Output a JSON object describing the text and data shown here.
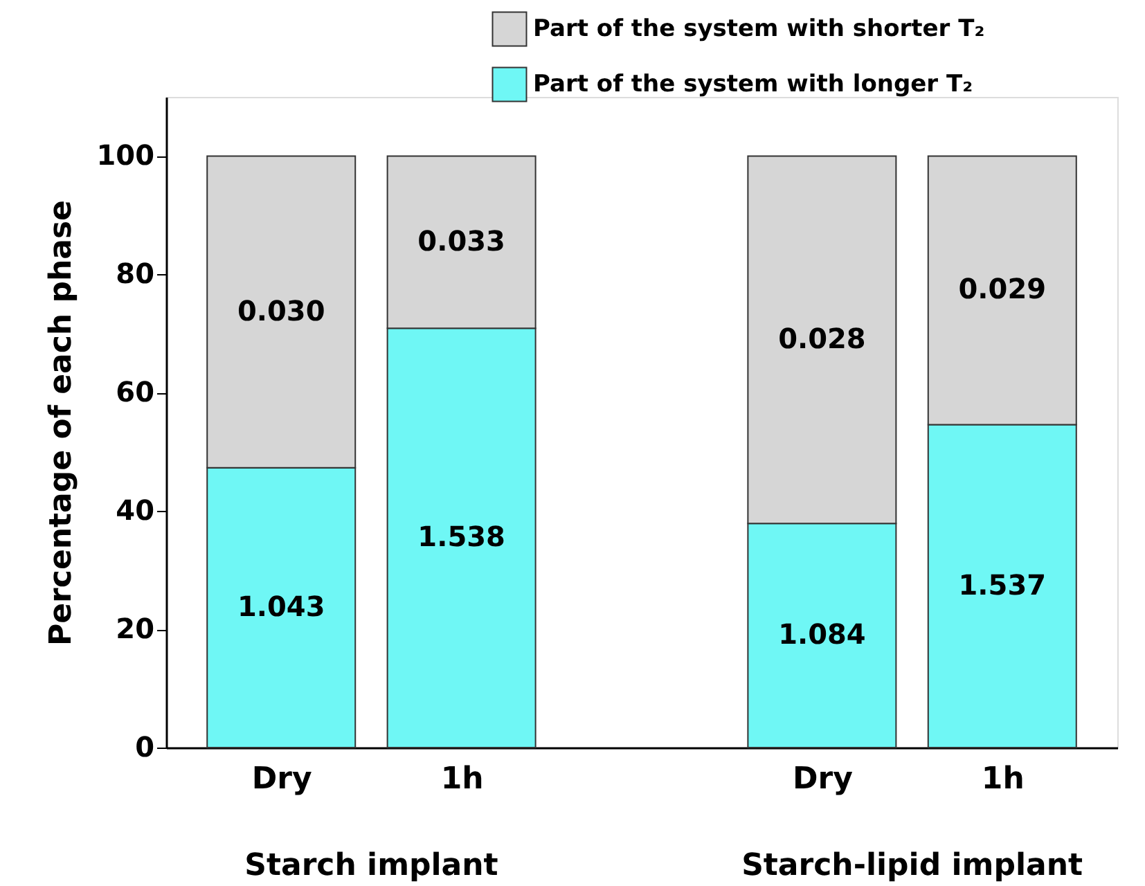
{
  "chart_data": {
    "type": "bar",
    "stacked": true,
    "ylabel": "Percentage of each phase",
    "categories": [
      "Dry",
      "1h",
      null,
      "Dry",
      "1h"
    ],
    "series": [
      {
        "name": "Part of the system with longer T₂",
        "color": "#6ff7f5",
        "values": [
          47.3,
          70.9,
          null,
          37.9,
          54.6
        ]
      },
      {
        "name": "Part of the system with shorter T₂",
        "color": "#d6d6d6",
        "values": [
          52.7,
          29.1,
          null,
          62.1,
          45.4
        ]
      }
    ],
    "ylim": [
      0,
      110
    ],
    "yticks": [
      0,
      20,
      40,
      60,
      80,
      100
    ],
    "grid": false,
    "legend": "top right",
    "annotations": [
      "1.043",
      "0.030",
      "1.538",
      "0.033",
      "1.084",
      "0.028",
      "1.537",
      "0.029",
      "Starch implant",
      "Starch-lipid implant"
    ]
  }
}
